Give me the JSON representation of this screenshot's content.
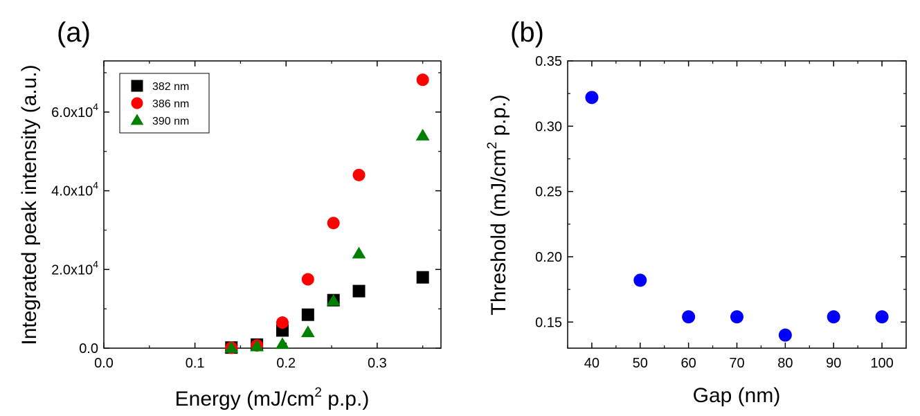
{
  "chart_data": [
    {
      "panel_label": "(a)",
      "type": "scatter",
      "xlabel": "Energy (mJ/cm",
      "xlabel_sup": "2",
      "xlabel_tail": " p.p.)",
      "ylabel": "Integrated peak intensity (a.u.)",
      "xlim": [
        0.0,
        0.37
      ],
      "ylim": [
        0,
        73000
      ],
      "xticks": [
        0.0,
        0.1,
        0.2,
        0.3
      ],
      "xtick_labels": [
        "0.0",
        "0.1",
        "0.2",
        "0.3"
      ],
      "yticks": [
        0,
        20000,
        40000,
        60000
      ],
      "ytick_labels": [
        {
          "base": "0.0",
          "exp": ""
        },
        {
          "base": "2.0x10",
          "exp": "4"
        },
        {
          "base": "4.0x10",
          "exp": "4"
        },
        {
          "base": "6.0x10",
          "exp": "4"
        }
      ],
      "legend_position": "top-left",
      "series": [
        {
          "name": "382 nm",
          "marker": "square",
          "color": "#000000",
          "x": [
            0.14,
            0.168,
            0.196,
            0.224,
            0.252,
            0.28,
            0.35
          ],
          "y": [
            150,
            900,
            4500,
            8500,
            12200,
            14500,
            18000
          ]
        },
        {
          "name": "386 nm",
          "marker": "circle",
          "color": "#ff0000",
          "x": [
            0.14,
            0.168,
            0.196,
            0.224,
            0.252,
            0.28,
            0.35
          ],
          "y": [
            100,
            700,
            6500,
            17500,
            31800,
            44000,
            68200
          ]
        },
        {
          "name": "390 nm",
          "marker": "triangle",
          "color": "#008000",
          "x": [
            0.14,
            0.168,
            0.196,
            0.224,
            0.252,
            0.28,
            0.35
          ],
          "y": [
            0,
            400,
            1000,
            4000,
            12000,
            24000,
            54000
          ]
        }
      ]
    },
    {
      "panel_label": "(b)",
      "type": "scatter",
      "xlabel": "Gap (nm)",
      "ylabel": "Threshold (mJ/cm",
      "ylabel_sup": "2",
      "ylabel_tail": " p.p.)",
      "xlim": [
        35,
        105
      ],
      "ylim": [
        0.13,
        0.35
      ],
      "xticks": [
        40,
        50,
        60,
        70,
        80,
        90,
        100
      ],
      "xtick_labels": [
        "40",
        "50",
        "60",
        "70",
        "80",
        "90",
        "100"
      ],
      "yticks": [
        0.15,
        0.2,
        0.25,
        0.3,
        0.35
      ],
      "ytick_labels": [
        "0.15",
        "0.20",
        "0.25",
        "0.30",
        "0.35"
      ],
      "series": [
        {
          "name": "Threshold",
          "marker": "circle",
          "color": "#0000ff",
          "x": [
            40,
            50,
            60,
            70,
            80,
            90,
            100
          ],
          "y": [
            0.322,
            0.182,
            0.154,
            0.154,
            0.14,
            0.154,
            0.154
          ]
        }
      ]
    }
  ]
}
